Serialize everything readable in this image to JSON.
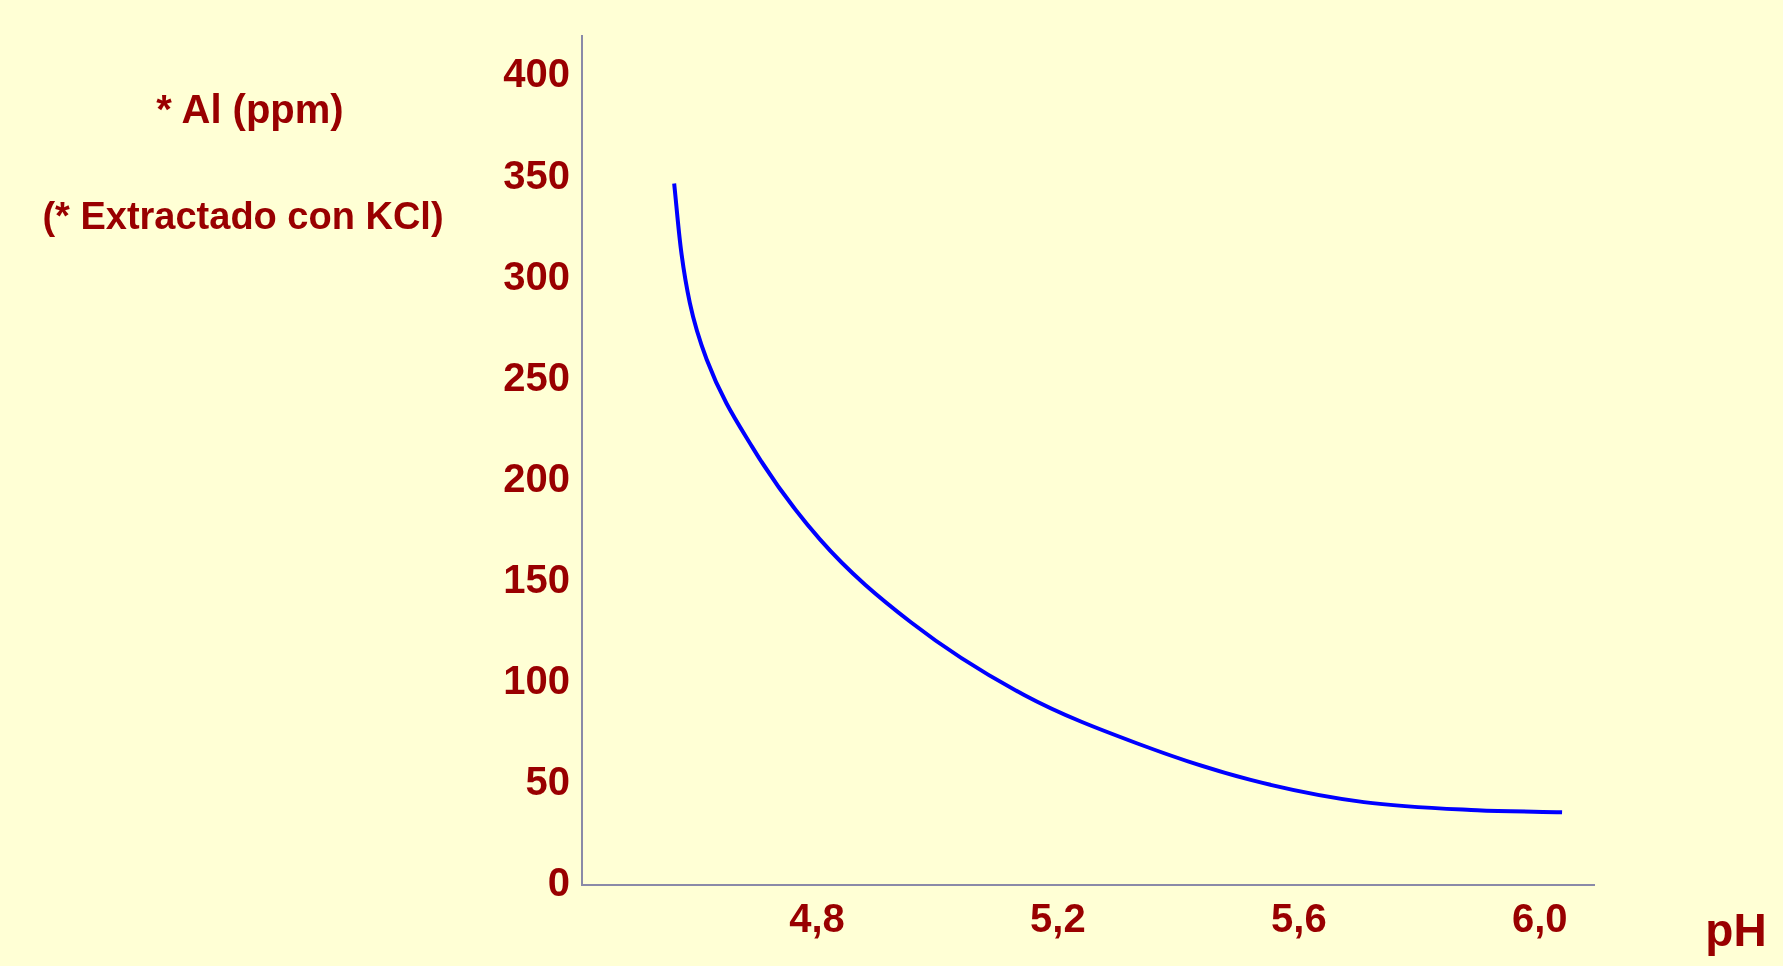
{
  "chart_data": {
    "type": "line",
    "xlabel": "pH",
    "ylabel": "*  Al (ppm)",
    "annotations": [
      "(* Extractado con KCl)"
    ],
    "x": [
      4.563,
      4.574,
      4.589,
      4.617,
      4.692,
      4.805,
      4.956,
      5.144,
      5.332,
      5.52,
      5.708,
      5.896,
      6.037
    ],
    "series": [
      {
        "color": "#0000ff",
        "values": [
          347,
          315,
          288,
          260,
          217,
          171,
          130,
          94,
          70,
          52,
          41,
          37,
          36
        ]
      }
    ],
    "xlim": [
      4.41,
      6.09
    ],
    "ylim": [
      0,
      420
    ],
    "xticks": [
      {
        "value": 4.8,
        "label": "4,8"
      },
      {
        "value": 5.2,
        "label": "5,2"
      },
      {
        "value": 5.6,
        "label": "5,6"
      },
      {
        "value": 6.0,
        "label": "6,0"
      }
    ],
    "yticks": [
      0,
      50,
      100,
      150,
      200,
      250,
      300,
      350,
      400
    ],
    "marker": "none",
    "line_style": "solid"
  }
}
